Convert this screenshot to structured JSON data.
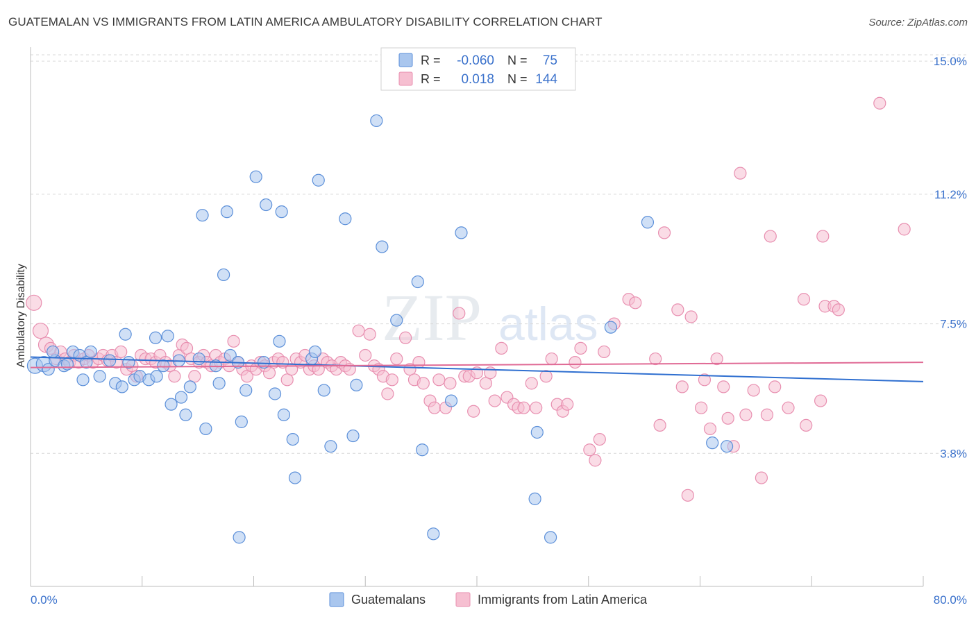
{
  "header": {
    "title": "GUATEMALAN VS IMMIGRANTS FROM LATIN AMERICA AMBULATORY DISABILITY CORRELATION CHART",
    "source": "Source: ZipAtlas.com"
  },
  "colors": {
    "blue": "#5b8fd9",
    "blue_fill": "#a9c6ee",
    "blue_line": "#2f6fd0",
    "pink": "#e88fb0",
    "pink_fill": "#f6bfd1",
    "pink_line": "#e06a95",
    "tick_label": "#3b72cc",
    "grid": "#d9d9d9"
  },
  "legend": {
    "row1": {
      "r_label": "R =",
      "r_value": "-0.060",
      "n_label": "N =",
      "n_value": "75"
    },
    "row2": {
      "r_label": "R =",
      "r_value": "0.018",
      "n_label": "N =",
      "n_value": "144"
    }
  },
  "watermark": {
    "zip": "ZIP",
    "atlas": "atlas"
  },
  "chart_data": {
    "type": "scatter",
    "title": "GUATEMALAN VS IMMIGRANTS FROM LATIN AMERICA AMBULATORY DISABILITY CORRELATION CHART",
    "xlabel": "",
    "ylabel": "Ambulatory Disability",
    "xlim": [
      0,
      80
    ],
    "ylim": [
      0,
      15.4
    ],
    "x_tick_labels": [
      "0.0%",
      "80.0%"
    ],
    "y_ticks": [
      3.8,
      7.5,
      11.2,
      15.0
    ],
    "y_tick_labels": [
      "3.8%",
      "7.5%",
      "11.2%",
      "15.0%"
    ],
    "grid": true,
    "legend_position": "bottom",
    "series": [
      {
        "name": "Guatemalans",
        "r": -0.06,
        "n": 75,
        "trend": {
          "x0": 0,
          "y0": 6.55,
          "x1": 80,
          "y1": 5.85
        },
        "points": [
          [
            0.4,
            6.3
          ],
          [
            1.2,
            6.35
          ],
          [
            1.6,
            6.2
          ],
          [
            2.2,
            6.45
          ],
          [
            3,
            6.3
          ],
          [
            3.3,
            6.35
          ],
          [
            3.8,
            6.7
          ],
          [
            4.4,
            6.6
          ],
          [
            5,
            6.4
          ],
          [
            5.4,
            6.7
          ],
          [
            6.2,
            6.0
          ],
          [
            2,
            6.7
          ],
          [
            4.7,
            5.9
          ],
          [
            7.1,
            6.45
          ],
          [
            7.6,
            5.8
          ],
          [
            8.2,
            5.7
          ],
          [
            8.5,
            7.2
          ],
          [
            8.8,
            6.4
          ],
          [
            9.3,
            5.9
          ],
          [
            9.8,
            6.0
          ],
          [
            10.6,
            5.9
          ],
          [
            11.3,
            6.0
          ],
          [
            11.9,
            6.3
          ],
          [
            11.2,
            7.1
          ],
          [
            12.3,
            7.15
          ],
          [
            12.6,
            5.2
          ],
          [
            13.3,
            6.45
          ],
          [
            13.5,
            5.4
          ],
          [
            13.9,
            4.9
          ],
          [
            14.3,
            5.7
          ],
          [
            15.1,
            6.5
          ],
          [
            15.4,
            10.6
          ],
          [
            15.7,
            4.5
          ],
          [
            16.6,
            6.3
          ],
          [
            16.9,
            5.8
          ],
          [
            17.3,
            8.9
          ],
          [
            17.6,
            10.7
          ],
          [
            17.9,
            6.6
          ],
          [
            18.6,
            6.4
          ],
          [
            18.7,
            1.4
          ],
          [
            18.9,
            4.7
          ],
          [
            19.3,
            5.6
          ],
          [
            20.2,
            11.7
          ],
          [
            20.9,
            6.4
          ],
          [
            21.1,
            10.9
          ],
          [
            21.9,
            5.5
          ],
          [
            22.3,
            7.0
          ],
          [
            22.5,
            10.7
          ],
          [
            22.7,
            4.9
          ],
          [
            23.5,
            4.2
          ],
          [
            23.7,
            3.1
          ],
          [
            25.2,
            6.5
          ],
          [
            25.5,
            6.7
          ],
          [
            25.8,
            11.6
          ],
          [
            26.3,
            5.6
          ],
          [
            26.9,
            4.0
          ],
          [
            28.2,
            10.5
          ],
          [
            28.9,
            4.3
          ],
          [
            29.2,
            5.75
          ],
          [
            31,
            13.3
          ],
          [
            31.5,
            9.7
          ],
          [
            32.8,
            7.6
          ],
          [
            34.7,
            8.7
          ],
          [
            35.1,
            3.9
          ],
          [
            36.1,
            1.5
          ],
          [
            37.7,
            5.3
          ],
          [
            38.6,
            10.1
          ],
          [
            45.2,
            2.5
          ],
          [
            45.4,
            4.4
          ],
          [
            46.6,
            1.4
          ],
          [
            52,
            7.4
          ],
          [
            55.3,
            10.4
          ],
          [
            61.1,
            4.1
          ],
          [
            62.4,
            4.0
          ]
        ]
      },
      {
        "name": "Immigrants from Latin America",
        "r": 0.018,
        "n": 144,
        "trend": {
          "x0": 0,
          "y0": 6.25,
          "x1": 80,
          "y1": 6.4
        },
        "points": [
          [
            0.3,
            8.1
          ],
          [
            0.9,
            7.3
          ],
          [
            1.4,
            6.9
          ],
          [
            1.8,
            6.8
          ],
          [
            2.3,
            6.5
          ],
          [
            2.7,
            6.7
          ],
          [
            3.1,
            6.5
          ],
          [
            3.5,
            6.4
          ],
          [
            3.9,
            6.6
          ],
          [
            4.3,
            6.4
          ],
          [
            4.8,
            6.5
          ],
          [
            5.2,
            6.6
          ],
          [
            5.6,
            6.4
          ],
          [
            6.1,
            6.5
          ],
          [
            6.5,
            6.6
          ],
          [
            6.9,
            6.45
          ],
          [
            7.3,
            6.6
          ],
          [
            7.7,
            6.4
          ],
          [
            8.1,
            6.7
          ],
          [
            8.6,
            6.2
          ],
          [
            9.1,
            6.3
          ],
          [
            9.5,
            6.0
          ],
          [
            9.9,
            6.6
          ],
          [
            10.3,
            6.5
          ],
          [
            10.8,
            6.5
          ],
          [
            11.2,
            6.4
          ],
          [
            11.6,
            6.6
          ],
          [
            12.1,
            6.4
          ],
          [
            12.5,
            6.3
          ],
          [
            12.9,
            6.0
          ],
          [
            13.3,
            6.6
          ],
          [
            13.6,
            6.9
          ],
          [
            14,
            6.8
          ],
          [
            14.4,
            6.5
          ],
          [
            14.7,
            6.0
          ],
          [
            15.1,
            6.4
          ],
          [
            15.5,
            6.6
          ],
          [
            15.8,
            6.4
          ],
          [
            16.2,
            6.3
          ],
          [
            16.6,
            6.6
          ],
          [
            17,
            6.4
          ],
          [
            17.4,
            6.5
          ],
          [
            17.8,
            6.3
          ],
          [
            18.2,
            7.0
          ],
          [
            18.6,
            6.4
          ],
          [
            19,
            6.2
          ],
          [
            19.4,
            6.0
          ],
          [
            19.8,
            6.3
          ],
          [
            20.2,
            6.2
          ],
          [
            20.6,
            6.4
          ],
          [
            21,
            6.3
          ],
          [
            21.4,
            6.1
          ],
          [
            21.8,
            6.4
          ],
          [
            22.2,
            6.5
          ],
          [
            22.6,
            6.4
          ],
          [
            23,
            5.9
          ],
          [
            23.4,
            6.2
          ],
          [
            23.8,
            6.5
          ],
          [
            24.2,
            6.4
          ],
          [
            24.6,
            6.6
          ],
          [
            25,
            6.2
          ],
          [
            25.4,
            6.3
          ],
          [
            25.8,
            6.2
          ],
          [
            26.2,
            6.5
          ],
          [
            26.6,
            6.4
          ],
          [
            27,
            6.3
          ],
          [
            27.4,
            6.2
          ],
          [
            27.8,
            6.4
          ],
          [
            28.2,
            6.3
          ],
          [
            28.6,
            6.2
          ],
          [
            29.4,
            7.3
          ],
          [
            30,
            6.6
          ],
          [
            30.4,
            7.2
          ],
          [
            30.8,
            6.3
          ],
          [
            31.2,
            6.2
          ],
          [
            31.6,
            6.0
          ],
          [
            32,
            5.5
          ],
          [
            32.4,
            5.9
          ],
          [
            32.8,
            6.5
          ],
          [
            33.6,
            7.1
          ],
          [
            34,
            6.2
          ],
          [
            34.4,
            5.9
          ],
          [
            34.8,
            6.4
          ],
          [
            35.2,
            5.8
          ],
          [
            35.8,
            5.3
          ],
          [
            36.2,
            5.1
          ],
          [
            36.6,
            5.9
          ],
          [
            37.2,
            5.1
          ],
          [
            37.6,
            5.8
          ],
          [
            38.4,
            7.8
          ],
          [
            38.9,
            6.0
          ],
          [
            39.3,
            6.0
          ],
          [
            39.7,
            5.0
          ],
          [
            40,
            6.1
          ],
          [
            40.8,
            5.8
          ],
          [
            41.2,
            6.1
          ],
          [
            41.6,
            5.3
          ],
          [
            42.2,
            6.8
          ],
          [
            42.7,
            5.4
          ],
          [
            43.3,
            5.2
          ],
          [
            43.7,
            5.1
          ],
          [
            44.2,
            5.1
          ],
          [
            44.9,
            5.8
          ],
          [
            45.3,
            5.1
          ],
          [
            46.2,
            6.0
          ],
          [
            46.7,
            6.5
          ],
          [
            47.2,
            5.2
          ],
          [
            47.7,
            5.0
          ],
          [
            48.1,
            5.2
          ],
          [
            48.8,
            6.4
          ],
          [
            49.3,
            6.8
          ],
          [
            50.1,
            3.9
          ],
          [
            50.6,
            3.6
          ],
          [
            51,
            4.2
          ],
          [
            51.4,
            6.7
          ],
          [
            52.3,
            7.5
          ],
          [
            53.6,
            8.2
          ],
          [
            54.2,
            8.1
          ],
          [
            56,
            6.5
          ],
          [
            56.4,
            4.6
          ],
          [
            56.8,
            10.1
          ],
          [
            58,
            7.9
          ],
          [
            58.4,
            5.7
          ],
          [
            58.9,
            2.6
          ],
          [
            59.2,
            7.7
          ],
          [
            60.4,
            5.9
          ],
          [
            60.9,
            4.5
          ],
          [
            61.5,
            6.5
          ],
          [
            62.1,
            5.7
          ],
          [
            63,
            4.0
          ],
          [
            63.6,
            11.8
          ],
          [
            64.1,
            4.9
          ],
          [
            64.8,
            5.6
          ],
          [
            65.5,
            3.1
          ],
          [
            66.3,
            10.0
          ],
          [
            66.7,
            5.7
          ],
          [
            67.9,
            5.1
          ],
          [
            69.3,
            8.2
          ],
          [
            69.5,
            4.6
          ],
          [
            70.8,
            5.3
          ],
          [
            71,
            10.0
          ],
          [
            71.2,
            8.0
          ],
          [
            72,
            8.0
          ],
          [
            72.4,
            7.9
          ],
          [
            76.1,
            13.8
          ],
          [
            78.3,
            10.2
          ],
          [
            60.1,
            5.1
          ],
          [
            62.5,
            4.8
          ],
          [
            66,
            4.9
          ]
        ]
      }
    ]
  },
  "axis_labels": {
    "y_title": "Ambulatory Disability",
    "x_left": "0.0%",
    "x_right": "80.0%",
    "y_ticks": [
      "3.8%",
      "7.5%",
      "11.2%",
      "15.0%"
    ]
  },
  "bottom_legend": {
    "items": [
      "Guatemalans",
      "Immigrants from Latin America"
    ]
  }
}
